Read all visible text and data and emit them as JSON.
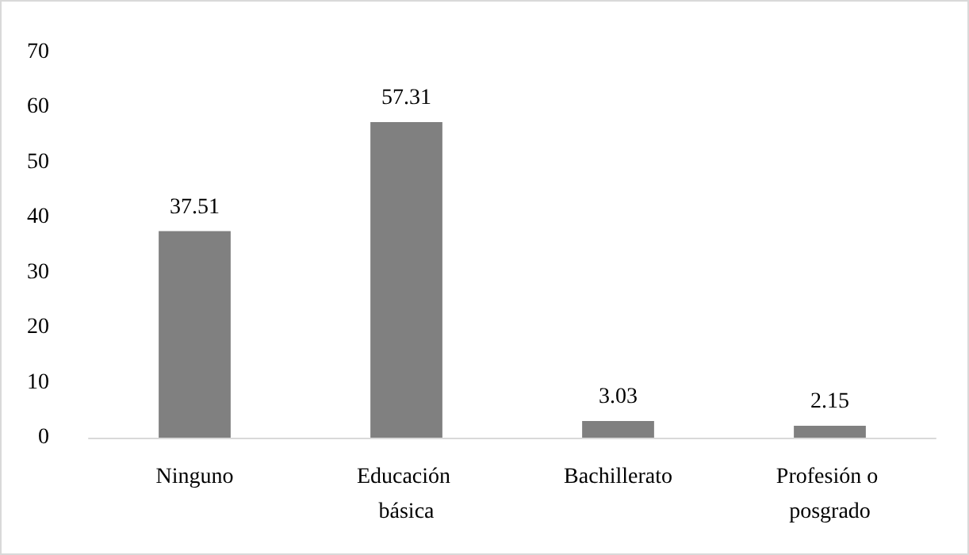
{
  "chart_data": {
    "type": "bar",
    "categories": [
      "Ninguno",
      "Educación básica",
      "Bachillerato",
      "Profesión o posgrado"
    ],
    "values": [
      37.51,
      57.31,
      3.03,
      2.15
    ],
    "color": "#808080",
    "ylim": [
      0,
      70
    ],
    "yticks": [
      0,
      10,
      20,
      30,
      40,
      50,
      60,
      70
    ],
    "grid": false,
    "data_labels": true
  }
}
